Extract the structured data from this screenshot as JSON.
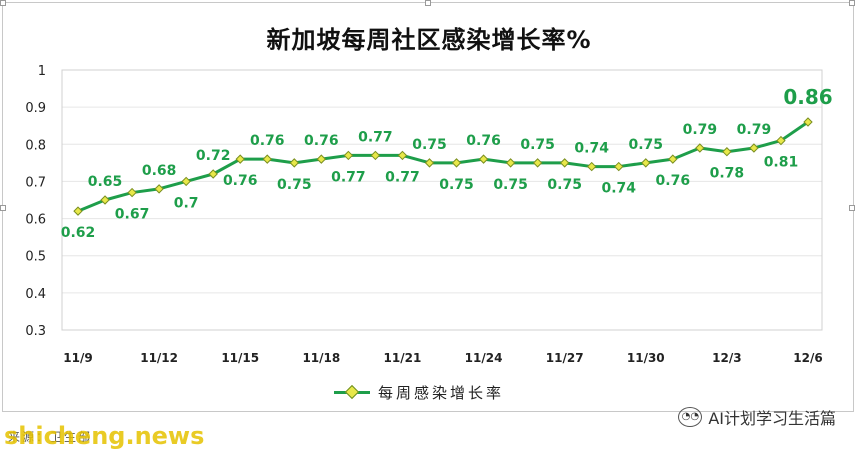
{
  "chart_data": {
    "type": "line",
    "title": "新加坡每周社区感染增长率%",
    "x": [
      "11/9",
      "11/10",
      "11/11",
      "11/12",
      "11/13",
      "11/14",
      "11/15",
      "11/16",
      "11/17",
      "11/18",
      "11/19",
      "11/20",
      "11/21",
      "11/22",
      "11/23",
      "11/24",
      "11/25",
      "11/26",
      "11/27",
      "11/28",
      "11/29",
      "11/30",
      "12/1",
      "12/2",
      "12/3",
      "12/4",
      "12/5",
      "12/6"
    ],
    "x_tick_labels": [
      "11/9",
      "11/12",
      "11/15",
      "11/18",
      "11/21",
      "11/24",
      "11/27",
      "11/30",
      "12/3",
      "12/6"
    ],
    "series": [
      {
        "name": "每周感染增长率",
        "values": [
          0.62,
          0.65,
          0.67,
          0.68,
          0.7,
          0.72,
          0.76,
          0.76,
          0.75,
          0.76,
          0.77,
          0.77,
          0.77,
          0.75,
          0.75,
          0.76,
          0.75,
          0.75,
          0.75,
          0.74,
          0.74,
          0.75,
          0.76,
          0.79,
          0.78,
          0.79,
          0.81,
          0.86
        ],
        "labels": [
          "0.62",
          "0.65",
          "0.67",
          "0.68",
          "0.7",
          "0.72",
          "0.76",
          "0.76",
          "0.75",
          "0.76",
          "0.77",
          "0.77",
          "0.77",
          "0.75",
          "0.75",
          "0.76",
          "0.75",
          "0.75",
          "0.75",
          "0.74",
          "0.74",
          "0.75",
          "0.76",
          "0.79",
          "0.78",
          "0.79",
          "0.81",
          "0.86"
        ]
      }
    ],
    "ylim": [
      0.3,
      1
    ],
    "y_ticks": [
      "0.3",
      "0.4",
      "0.5",
      "0.6",
      "0.7",
      "0.8",
      "0.9",
      "1"
    ],
    "grid": true,
    "legend_position": "bottom",
    "line_color": "#1e9e4a",
    "marker_color": "#e8e84a",
    "label_color": "#1e9e4a"
  },
  "legend": {
    "label": "每周感染增长率"
  },
  "brand": {
    "icon": "wechat-icon",
    "text": "AI计划学习生活篇"
  },
  "footer": {
    "source": "来源：卫生部",
    "watermark": "shicheng.news"
  }
}
